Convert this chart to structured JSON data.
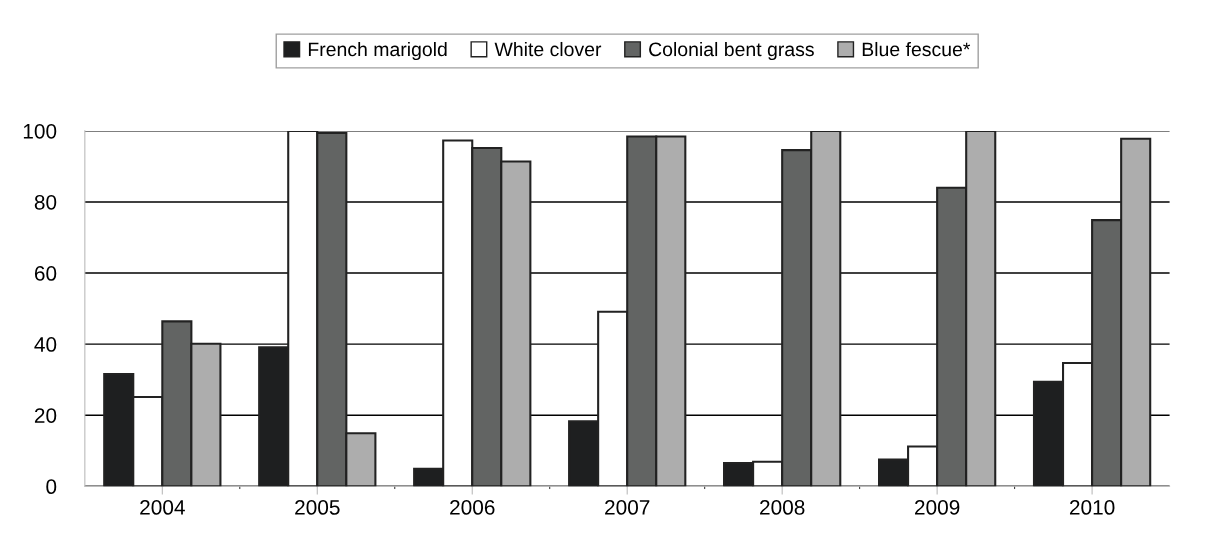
{
  "chart_data": {
    "type": "bar",
    "categories": [
      "2004",
      "2005",
      "2006",
      "2007",
      "2008",
      "2009",
      "2010"
    ],
    "series": [
      {
        "name": "French marigold",
        "color": "#1e1f20",
        "values": [
          31.6,
          39.1,
          4.9,
          18.3,
          6.5,
          7.5,
          29.4
        ]
      },
      {
        "name": "White clover",
        "color": "#ffffff",
        "values": [
          25.1,
          100,
          97.3,
          49.1,
          6.9,
          11.2,
          34.7
        ]
      },
      {
        "name": "Colonial bent grass",
        "color": "#626463",
        "values": [
          46.4,
          99.4,
          95.2,
          98.4,
          94.6,
          84.0,
          74.9
        ]
      },
      {
        "name": "Blue fescue*",
        "color": "#adadad",
        "values": [
          40.1,
          14.9,
          91.4,
          98.4,
          100,
          100,
          97.8
        ]
      }
    ],
    "ylim": [
      0,
      100
    ],
    "yticks": [
      0,
      20,
      40,
      60,
      80,
      100
    ],
    "grid": "y",
    "legend": "top"
  }
}
